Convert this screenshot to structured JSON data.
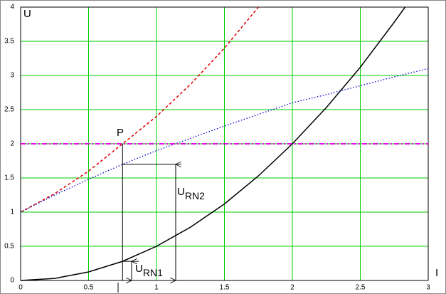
{
  "chart_data": {
    "type": "line",
    "y_label": "U",
    "x_label": "I",
    "xlim": [
      0,
      3
    ],
    "ylim": [
      0,
      4
    ],
    "xticks": [
      0,
      0.5,
      1,
      1.5,
      2,
      2.5,
      3
    ],
    "yticks": [
      0,
      0.5,
      1,
      1.5,
      2,
      2.5,
      3,
      3.5,
      4
    ],
    "grid": true,
    "grid_color": "#00cc00",
    "series": [
      {
        "color": "#000000",
        "style": "solid",
        "x": [
          0,
          0.25,
          0.5,
          0.75,
          1,
          1.25,
          1.5,
          1.75,
          2,
          2.25,
          2.5,
          2.75,
          2.83
        ],
        "values": [
          0,
          0.03,
          0.125,
          0.28,
          0.5,
          0.78,
          1.12,
          1.53,
          2,
          2.53,
          3.12,
          3.78,
          4
        ]
      },
      {
        "color": "#dd0000",
        "style": "dashed",
        "x": [
          0,
          0.25,
          0.5,
          0.75,
          1,
          1.25,
          1.5,
          1.75
        ],
        "values": [
          1,
          1.27,
          1.6,
          2,
          2.4,
          2.87,
          3.4,
          4
        ]
      },
      {
        "color": "#0000cc",
        "style": "dotted",
        "x": [
          0,
          0.25,
          0.5,
          0.75,
          1,
          1.25,
          1.5,
          1.75,
          2,
          2.25,
          2.5,
          2.75,
          3
        ],
        "values": [
          1,
          1.25,
          1.48,
          1.7,
          1.9,
          2.08,
          2.26,
          2.43,
          2.6,
          2.72,
          2.85,
          2.98,
          3.1
        ]
      },
      {
        "color": "#ee00ee",
        "style": "dashdot",
        "x": [
          0,
          3
        ],
        "values": [
          2,
          2
        ]
      }
    ],
    "annotations": [
      {
        "text": "P"
      },
      {
        "text": "U",
        "subscript": "RN2"
      },
      {
        "text": "U",
        "subscript": "RN1"
      }
    ]
  }
}
